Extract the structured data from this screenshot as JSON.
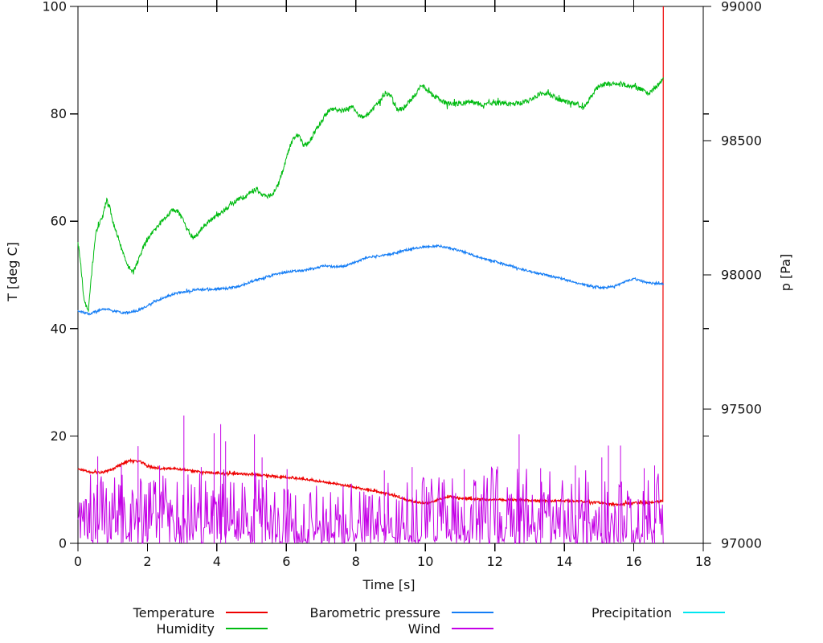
{
  "chart_data": {
    "type": "line",
    "title": "",
    "x_axis": {
      "label": "Time [s]",
      "range": [
        0,
        18
      ],
      "ticks": [
        0,
        2,
        4,
        6,
        8,
        10,
        12,
        14,
        16,
        18
      ]
    },
    "y_axis": {
      "label": "T [deg C]",
      "range": [
        0,
        100
      ],
      "ticks": [
        0,
        20,
        40,
        60,
        80,
        100
      ]
    },
    "y2_axis": {
      "label": "p [Pa]",
      "range": [
        97000,
        99000
      ],
      "ticks": [
        97000,
        97500,
        98000,
        98500,
        99000
      ]
    },
    "grid": false,
    "data_end_t": 16.85,
    "draw_order": [
      4,
      0,
      1,
      2,
      3
    ],
    "series": [
      {
        "name": "Temperature",
        "color": "#ee0000",
        "axis": "y",
        "width": 1.2,
        "noise": 0.2,
        "points": [
          [
            0,
            13.8
          ],
          [
            0.2,
            13.6
          ],
          [
            0.35,
            13.2
          ],
          [
            0.7,
            13.2
          ],
          [
            1.0,
            13.8
          ],
          [
            1.2,
            14.6
          ],
          [
            1.5,
            15.4
          ],
          [
            1.8,
            15.2
          ],
          [
            2.1,
            14.2
          ],
          [
            2.4,
            13.9
          ],
          [
            2.8,
            13.9
          ],
          [
            3.2,
            13.6
          ],
          [
            3.5,
            13.3
          ],
          [
            4.0,
            13.1
          ],
          [
            4.5,
            13.0
          ],
          [
            5.0,
            12.8
          ],
          [
            5.5,
            12.6
          ],
          [
            6.0,
            12.3
          ],
          [
            6.5,
            12.0
          ],
          [
            7.0,
            11.5
          ],
          [
            7.5,
            11.0
          ],
          [
            8.0,
            10.4
          ],
          [
            8.5,
            9.8
          ],
          [
            9.0,
            9.1
          ],
          [
            9.5,
            8.0
          ],
          [
            9.8,
            7.6
          ],
          [
            10.1,
            7.4
          ],
          [
            10.4,
            8.3
          ],
          [
            10.7,
            8.7
          ],
          [
            11.0,
            8.4
          ],
          [
            11.5,
            8.2
          ],
          [
            12.0,
            8.1
          ],
          [
            12.5,
            8.1
          ],
          [
            13.0,
            8.0
          ],
          [
            13.5,
            7.9
          ],
          [
            14.0,
            7.9
          ],
          [
            14.5,
            7.8
          ],
          [
            15.0,
            7.6
          ],
          [
            15.4,
            7.2
          ],
          [
            15.8,
            7.4
          ],
          [
            16.2,
            7.6
          ],
          [
            16.5,
            7.6
          ],
          [
            16.84,
            7.9
          ],
          [
            16.85,
            100
          ]
        ]
      },
      {
        "name": "Humidity",
        "color": "#00bb11",
        "axis": "y",
        "width": 1,
        "noise": 0.45,
        "points": [
          [
            0,
            56
          ],
          [
            0.08,
            52
          ],
          [
            0.18,
            45
          ],
          [
            0.3,
            43.5
          ],
          [
            0.42,
            52
          ],
          [
            0.52,
            58
          ],
          [
            0.62,
            59.5
          ],
          [
            0.72,
            61
          ],
          [
            0.82,
            64
          ],
          [
            0.92,
            62.5
          ],
          [
            1.0,
            60
          ],
          [
            1.15,
            57
          ],
          [
            1.3,
            54
          ],
          [
            1.45,
            51.5
          ],
          [
            1.6,
            50.5
          ],
          [
            1.75,
            53
          ],
          [
            1.9,
            55.5
          ],
          [
            2.1,
            57.5
          ],
          [
            2.3,
            59
          ],
          [
            2.5,
            60.5
          ],
          [
            2.7,
            62
          ],
          [
            2.85,
            62
          ],
          [
            3.0,
            60.5
          ],
          [
            3.15,
            58.5
          ],
          [
            3.3,
            57
          ],
          [
            3.45,
            57.5
          ],
          [
            3.6,
            59
          ],
          [
            3.8,
            60
          ],
          [
            4.0,
            61
          ],
          [
            4.2,
            62
          ],
          [
            4.4,
            63
          ],
          [
            4.6,
            64
          ],
          [
            4.8,
            64.5
          ],
          [
            5.0,
            65.5
          ],
          [
            5.15,
            66
          ],
          [
            5.3,
            65
          ],
          [
            5.45,
            64.5
          ],
          [
            5.6,
            65
          ],
          [
            5.75,
            66.5
          ],
          [
            5.9,
            69.5
          ],
          [
            6.05,
            73
          ],
          [
            6.2,
            75.5
          ],
          [
            6.35,
            76
          ],
          [
            6.5,
            74
          ],
          [
            6.65,
            74.5
          ],
          [
            6.8,
            76.5
          ],
          [
            7.0,
            78.5
          ],
          [
            7.2,
            80.5
          ],
          [
            7.35,
            81
          ],
          [
            7.5,
            80.5
          ],
          [
            7.7,
            80.8
          ],
          [
            7.9,
            81.5
          ],
          [
            8.05,
            80
          ],
          [
            8.2,
            79.4
          ],
          [
            8.35,
            80
          ],
          [
            8.5,
            81
          ],
          [
            8.7,
            82.5
          ],
          [
            8.85,
            83.8
          ],
          [
            9.0,
            83.5
          ],
          [
            9.1,
            82
          ],
          [
            9.2,
            80.8
          ],
          [
            9.35,
            81
          ],
          [
            9.5,
            82
          ],
          [
            9.7,
            83.5
          ],
          [
            9.9,
            85.3
          ],
          [
            10.05,
            84.5
          ],
          [
            10.2,
            83.5
          ],
          [
            10.4,
            82.8
          ],
          [
            10.6,
            82
          ],
          [
            10.8,
            81.8
          ],
          [
            11.0,
            82
          ],
          [
            11.3,
            82.2
          ],
          [
            11.6,
            81.8
          ],
          [
            11.9,
            82
          ],
          [
            12.2,
            82
          ],
          [
            12.5,
            81.8
          ],
          [
            12.75,
            82
          ],
          [
            13.0,
            82.5
          ],
          [
            13.2,
            83.3
          ],
          [
            13.4,
            84
          ],
          [
            13.6,
            83.5
          ],
          [
            13.8,
            82.8
          ],
          [
            14.0,
            82.3
          ],
          [
            14.2,
            82
          ],
          [
            14.4,
            81.8
          ],
          [
            14.55,
            81
          ],
          [
            14.7,
            82.5
          ],
          [
            14.85,
            84
          ],
          [
            15.0,
            85.3
          ],
          [
            15.2,
            85.6
          ],
          [
            15.4,
            85.5
          ],
          [
            15.6,
            85.6
          ],
          [
            15.8,
            85.3
          ],
          [
            16.0,
            85
          ],
          [
            16.2,
            84.7
          ],
          [
            16.35,
            83.8
          ],
          [
            16.5,
            84
          ],
          [
            16.65,
            85
          ],
          [
            16.85,
            86.5
          ]
        ]
      },
      {
        "name": "Barometric pressure",
        "color": "#147df5",
        "axis": "y2",
        "width": 1.1,
        "noise": 4,
        "points": [
          [
            0,
            97868
          ],
          [
            0.2,
            97858
          ],
          [
            0.35,
            97854
          ],
          [
            0.5,
            97864
          ],
          [
            0.7,
            97872
          ],
          [
            0.9,
            97872
          ],
          [
            1.1,
            97864
          ],
          [
            1.3,
            97858
          ],
          [
            1.5,
            97862
          ],
          [
            1.7,
            97866
          ],
          [
            1.9,
            97878
          ],
          [
            2.1,
            97892
          ],
          [
            2.3,
            97906
          ],
          [
            2.6,
            97922
          ],
          [
            2.9,
            97934
          ],
          [
            3.2,
            97940
          ],
          [
            3.5,
            97946
          ],
          [
            3.8,
            97946
          ],
          [
            4.1,
            97948
          ],
          [
            4.4,
            97952
          ],
          [
            4.7,
            97960
          ],
          [
            5.0,
            97976
          ],
          [
            5.3,
            97988
          ],
          [
            5.6,
            98000
          ],
          [
            5.9,
            98008
          ],
          [
            6.2,
            98014
          ],
          [
            6.5,
            98016
          ],
          [
            6.8,
            98024
          ],
          [
            7.1,
            98034
          ],
          [
            7.4,
            98030
          ],
          [
            7.7,
            98034
          ],
          [
            8.0,
            98048
          ],
          [
            8.3,
            98064
          ],
          [
            8.6,
            98070
          ],
          [
            8.9,
            98074
          ],
          [
            9.2,
            98084
          ],
          [
            9.5,
            98094
          ],
          [
            9.8,
            98102
          ],
          [
            10.1,
            98104
          ],
          [
            10.4,
            98108
          ],
          [
            10.7,
            98100
          ],
          [
            11.0,
            98090
          ],
          [
            11.3,
            98076
          ],
          [
            11.6,
            98064
          ],
          [
            11.9,
            98054
          ],
          [
            12.2,
            98042
          ],
          [
            12.5,
            98032
          ],
          [
            12.8,
            98020
          ],
          [
            13.1,
            98010
          ],
          [
            13.4,
            98002
          ],
          [
            13.7,
            97992
          ],
          [
            14.0,
            97984
          ],
          [
            14.3,
            97972
          ],
          [
            14.6,
            97962
          ],
          [
            14.9,
            97956
          ],
          [
            15.2,
            97952
          ],
          [
            15.5,
            97960
          ],
          [
            15.8,
            97978
          ],
          [
            16.0,
            97984
          ],
          [
            16.2,
            97978
          ],
          [
            16.4,
            97970
          ],
          [
            16.6,
            97968
          ],
          [
            16.85,
            97968
          ]
        ]
      },
      {
        "name": "Wind",
        "color": "#c400e6",
        "axis": "y",
        "width": 1,
        "type": "noise-comb",
        "step": 0.024,
        "power": 1.9,
        "envelope": [
          [
            0,
            13
          ],
          [
            1,
            13.5
          ],
          [
            2,
            14
          ],
          [
            3,
            13
          ],
          [
            4,
            14
          ],
          [
            5,
            14
          ],
          [
            5.5,
            12
          ],
          [
            6,
            11
          ],
          [
            7,
            11
          ],
          [
            8,
            12
          ],
          [
            9,
            12
          ],
          [
            10,
            12.5
          ],
          [
            11,
            13
          ],
          [
            11.8,
            14
          ],
          [
            12.5,
            15
          ],
          [
            13,
            14
          ],
          [
            14,
            13
          ],
          [
            15,
            14
          ],
          [
            16,
            13.5
          ],
          [
            16.85,
            13
          ]
        ],
        "spikes": [
          [
            0.57,
            16.2
          ],
          [
            1.25,
            14.5
          ],
          [
            1.73,
            18.1
          ],
          [
            2.35,
            14.5
          ],
          [
            3.05,
            23.8
          ],
          [
            3.55,
            14.2
          ],
          [
            3.92,
            20.5
          ],
          [
            4.11,
            22.2
          ],
          [
            4.25,
            19.0
          ],
          [
            5.08,
            20.3
          ],
          [
            5.3,
            16.0
          ],
          [
            6.02,
            13.8
          ],
          [
            8.82,
            13.6
          ],
          [
            9.62,
            14.2
          ],
          [
            11.12,
            13.8
          ],
          [
            12.08,
            14.3
          ],
          [
            12.7,
            20.3
          ],
          [
            13.32,
            14.0
          ],
          [
            14.32,
            14.5
          ],
          [
            15.08,
            16.0
          ],
          [
            15.27,
            18.2
          ],
          [
            15.62,
            18.2
          ],
          [
            16.3,
            14.0
          ],
          [
            16.6,
            14.5
          ]
        ]
      },
      {
        "name": "Precipitation",
        "color": "#00e6f0",
        "axis": "y",
        "width": 1,
        "noise": 0,
        "points": [
          [
            0,
            0
          ],
          [
            16.85,
            0
          ]
        ]
      }
    ]
  },
  "legend": {
    "entries": [
      {
        "label": "Temperature",
        "color": "#ee0000"
      },
      {
        "label": "Humidity",
        "color": "#00bb11"
      },
      {
        "label": "Barometric pressure",
        "color": "#147df5"
      },
      {
        "label": "Wind",
        "color": "#c400e6"
      },
      {
        "label": "Precipitation",
        "color": "#00e6f0"
      }
    ]
  }
}
